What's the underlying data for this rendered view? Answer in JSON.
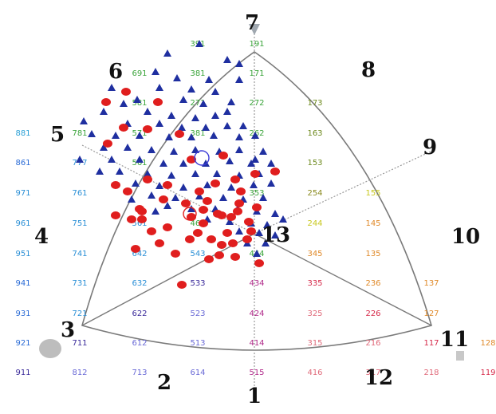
{
  "figure": {
    "region_labels": [
      {
        "text": "1",
        "anchor": "bottom-center"
      },
      {
        "text": "2",
        "anchor": "bottom-left"
      },
      {
        "text": "3",
        "anchor": "left-vertex"
      },
      {
        "text": "4",
        "anchor": "left"
      },
      {
        "text": "5",
        "anchor": "upper-left-axis"
      },
      {
        "text": "6",
        "anchor": "upper-left"
      },
      {
        "text": "7",
        "anchor": "top-vertex"
      },
      {
        "text": "8",
        "anchor": "upper-right"
      },
      {
        "text": "9",
        "anchor": "upper-right-axis"
      },
      {
        "text": "10",
        "anchor": "right"
      },
      {
        "text": "11",
        "anchor": "right-vertex"
      },
      {
        "text": "12",
        "anchor": "bottom-right"
      },
      {
        "text": "13",
        "anchor": "center"
      }
    ],
    "grid_codes": [
      {
        "t": "391",
        "c": "#3aa43a"
      },
      {
        "t": "191",
        "c": "#3aa43a"
      },
      {
        "t": "691",
        "c": "#3aa43a"
      },
      {
        "t": "381",
        "c": "#3aa43a"
      },
      {
        "t": "171",
        "c": "#3aa43a"
      },
      {
        "t": "581",
        "c": "#3aa43a"
      },
      {
        "t": "271",
        "c": "#3aa43a"
      },
      {
        "t": "272",
        "c": "#3aa43a"
      },
      {
        "t": "173",
        "c": "#6e8a1e"
      },
      {
        "t": "881",
        "c": "#2aa0d6"
      },
      {
        "t": "781",
        "c": "#3aa43a"
      },
      {
        "t": "571",
        "c": "#3aa43a"
      },
      {
        "t": "381",
        "c": "#3aa43a"
      },
      {
        "t": "262",
        "c": "#3aa43a"
      },
      {
        "t": "163",
        "c": "#6e8a1e"
      },
      {
        "t": "861",
        "c": "#2a6bd6"
      },
      {
        "t": "777",
        "c": "#2a8fd6"
      },
      {
        "t": "561",
        "c": "#3aa43a"
      },
      {
        "t": "153",
        "c": "#6e8a1e"
      },
      {
        "t": "971",
        "c": "#2a8fd6"
      },
      {
        "t": "761",
        "c": "#2a8fd6"
      },
      {
        "t": "353",
        "c": "#3aa43a"
      },
      {
        "t": "254",
        "c": "#8a8a1e"
      },
      {
        "t": "155",
        "c": "#c8c81e"
      },
      {
        "t": "961",
        "c": "#2a8fd6"
      },
      {
        "t": "751",
        "c": "#2a8fd6"
      },
      {
        "t": "561",
        "c": "#2a8fd6"
      },
      {
        "t": "461",
        "c": "#3aa43a"
      },
      {
        "t": "244",
        "c": "#c8c81e"
      },
      {
        "t": "145",
        "c": "#e08a2a"
      },
      {
        "t": "951",
        "c": "#2a8fd6"
      },
      {
        "t": "741",
        "c": "#2a8fd6"
      },
      {
        "t": "642",
        "c": "#2a8fd6"
      },
      {
        "t": "543",
        "c": "#2a8fd6"
      },
      {
        "t": "444",
        "c": "#3aa43a"
      },
      {
        "t": "345",
        "c": "#e08a2a"
      },
      {
        "t": "135",
        "c": "#e08a2a"
      },
      {
        "t": "941",
        "c": "#2a6bd6"
      },
      {
        "t": "731",
        "c": "#2a8fd6"
      },
      {
        "t": "632",
        "c": "#2a8fd6"
      },
      {
        "t": "533",
        "c": "#3a2a9a"
      },
      {
        "t": "434",
        "c": "#b02a8a"
      },
      {
        "t": "335",
        "c": "#d62a4a"
      },
      {
        "t": "236",
        "c": "#e08a2a"
      },
      {
        "t": "137",
        "c": "#e08a2a"
      },
      {
        "t": "931",
        "c": "#2a6bd6"
      },
      {
        "t": "721",
        "c": "#2a8fd6"
      },
      {
        "t": "622",
        "c": "#3a2a9a"
      },
      {
        "t": "523",
        "c": "#6a6ad6"
      },
      {
        "t": "424",
        "c": "#b02a8a"
      },
      {
        "t": "325",
        "c": "#e06a7a"
      },
      {
        "t": "226",
        "c": "#d62a4a"
      },
      {
        "t": "127",
        "c": "#e08a2a"
      },
      {
        "t": "921",
        "c": "#2a6bd6"
      },
      {
        "t": "711",
        "c": "#3a2a9a"
      },
      {
        "t": "612",
        "c": "#6a6ad6"
      },
      {
        "t": "513",
        "c": "#6a6ad6"
      },
      {
        "t": "414",
        "c": "#b02a8a"
      },
      {
        "t": "315",
        "c": "#e06a7a"
      },
      {
        "t": "216",
        "c": "#e06a7a"
      },
      {
        "t": "117",
        "c": "#d62a4a"
      },
      {
        "t": "128",
        "c": "#e08a2a"
      },
      {
        "t": "911",
        "c": "#3a2a9a"
      },
      {
        "t": "812",
        "c": "#6a6ad6"
      },
      {
        "t": "713",
        "c": "#6a6ad6"
      },
      {
        "t": "614",
        "c": "#6a6ad6"
      },
      {
        "t": "515",
        "c": "#b02a8a"
      },
      {
        "t": "416",
        "c": "#e06a7a"
      },
      {
        "t": "317",
        "c": "#e06a7a"
      },
      {
        "t": "218",
        "c": "#e06a7a"
      },
      {
        "t": "119",
        "c": "#d62a4a"
      }
    ],
    "colors": {
      "triangle_marker": "#1f2fa0",
      "circle_marker": "#e01e1e",
      "outline": "#7a7a7a",
      "axis": "#9a9a9a"
    },
    "marker_counts": {
      "triangles": 96,
      "circles": 55
    }
  }
}
